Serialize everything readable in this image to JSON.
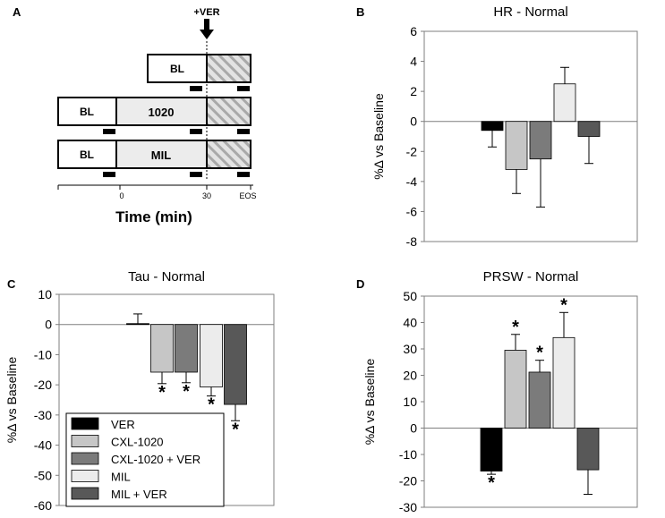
{
  "panels": {
    "A": {
      "label": "A",
      "drug_marker": "+VER",
      "rows": [
        {
          "bl": "BL",
          "treatment": ""
        },
        {
          "bl": "BL",
          "treatment": "1020"
        },
        {
          "bl": "BL",
          "treatment": "MIL"
        }
      ],
      "axis_ticks": [
        "0",
        "30",
        "EOS"
      ],
      "axis_title": "Time (min)"
    },
    "B": {
      "label": "B"
    },
    "C": {
      "label": "C"
    },
    "D": {
      "label": "D"
    }
  },
  "legend": {
    "items": [
      "VER",
      "CXL-1020",
      "CXL-1020 + VER",
      "MIL",
      "MIL + VER"
    ],
    "colors": [
      "#000000",
      "#c6c6c6",
      "#7b7b7b",
      "#ececec",
      "#585858"
    ]
  },
  "chart_data": [
    {
      "type": "bar",
      "panel": "B",
      "title": "HR - Normal",
      "ylabel": "%Δ vs Baseline",
      "xlabel": "",
      "ylim": [
        -8,
        6
      ],
      "yticks": [
        6,
        4,
        2,
        0,
        -2,
        -4,
        -6,
        -8
      ],
      "categories": [
        "VER",
        "CXL-1020",
        "CXL-1020 + VER",
        "MIL",
        "MIL + VER"
      ],
      "values": [
        -0.6,
        -3.2,
        -2.5,
        2.5,
        -1.0
      ],
      "errors": [
        1.1,
        1.6,
        3.2,
        1.1,
        1.8
      ],
      "significant": [
        false,
        false,
        false,
        false,
        false
      ]
    },
    {
      "type": "bar",
      "panel": "C",
      "title": "Tau - Normal",
      "ylabel": "%Δ vs Baseline",
      "xlabel": "",
      "ylim": [
        -60,
        10
      ],
      "yticks": [
        10,
        0,
        -10,
        -20,
        -30,
        -40,
        -50,
        -60
      ],
      "categories": [
        "VER",
        "CXL-1020",
        "CXL-1020 + VER",
        "MIL",
        "MIL + VER"
      ],
      "values": [
        0.3,
        -15.8,
        -15.8,
        -20.7,
        -26.5
      ],
      "errors": [
        3.2,
        3.8,
        3.5,
        3.0,
        5.4
      ],
      "significant": [
        false,
        true,
        true,
        true,
        true
      ]
    },
    {
      "type": "bar",
      "panel": "D",
      "title": "PRSW - Normal",
      "ylabel": "%Δ vs Baseline",
      "xlabel": "",
      "ylim": [
        -30,
        50
      ],
      "yticks": [
        50,
        40,
        30,
        20,
        10,
        0,
        -10,
        -20,
        -30
      ],
      "categories": [
        "VER",
        "CXL-1020",
        "CXL-1020 + VER",
        "MIL",
        "MIL + VER"
      ],
      "values": [
        -16.3,
        29.5,
        21.2,
        34.3,
        -15.8
      ],
      "errors": [
        1.2,
        6.0,
        4.5,
        9.5,
        9.3
      ],
      "significant": [
        true,
        true,
        true,
        true,
        false
      ],
      "significance_mark": "*"
    }
  ]
}
